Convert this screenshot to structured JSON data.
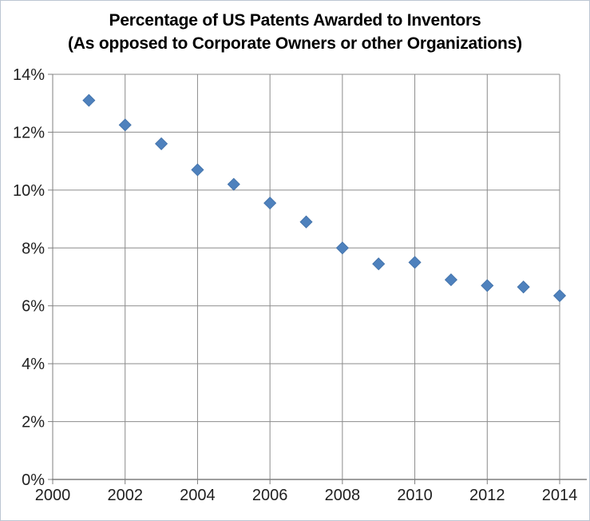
{
  "chart_data": {
    "type": "scatter",
    "title": "Percentage of US Patents Awarded to Inventors",
    "subtitle": "(As opposed to Corporate Owners or other Organizations)",
    "x": [
      2001,
      2002,
      2003,
      2004,
      2005,
      2006,
      2007,
      2008,
      2009,
      2010,
      2011,
      2012,
      2013,
      2014
    ],
    "y": [
      13.1,
      12.25,
      11.6,
      10.7,
      10.2,
      9.55,
      8.9,
      8.0,
      7.45,
      7.5,
      6.9,
      6.7,
      6.65,
      6.35
    ],
    "xlim": [
      2000,
      2014
    ],
    "ylim": [
      0,
      14
    ],
    "x_tick_step": 2,
    "y_tick_step": 2,
    "x_tick_labels": [
      "2000",
      "2002",
      "2004",
      "2006",
      "2008",
      "2010",
      "2012",
      "2014"
    ],
    "y_tick_labels": [
      "0%",
      "2%",
      "4%",
      "6%",
      "8%",
      "10%",
      "12%",
      "14%"
    ],
    "grid": true,
    "legend": "none",
    "marker": {
      "shape": "diamond",
      "color": "#4E81BD",
      "edge_color": "#3D6DA5"
    },
    "colors": {
      "gridline": "#8C8C8C",
      "axis": "#7F7F7F",
      "tick_text": "#1F1F1F",
      "title_text": "#000000",
      "border": "#BCC6D2",
      "background": "#FFFFFF"
    }
  }
}
